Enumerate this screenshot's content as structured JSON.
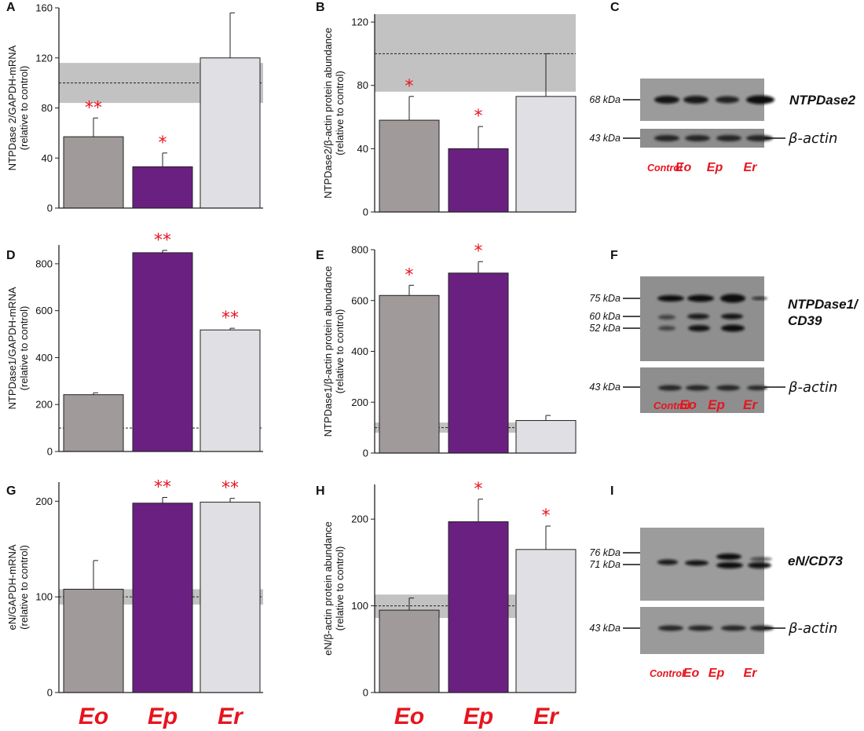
{
  "colors": {
    "Eo": "#a09a9a",
    "Ep": "#6a2080",
    "Er": "#e0e0e4",
    "star": "#e8141e",
    "band": "#c2c2c2"
  },
  "category_labels": [
    "Eo",
    "Ep",
    "Er"
  ],
  "chart_data": [
    {
      "panel": "A",
      "type": "bar",
      "ylabel": "NTPDase 2/GAPDH-mRNA\n(relative to control)",
      "categories": [
        "Eo",
        "Ep",
        "Er"
      ],
      "values": [
        57,
        33,
        120
      ],
      "errors": [
        15,
        11,
        36
      ],
      "significance": [
        "**",
        "*",
        ""
      ],
      "ylim": [
        0,
        160
      ],
      "yticks": [
        0,
        40,
        80,
        120,
        160
      ],
      "control": {
        "mean": 100,
        "band": [
          84,
          116
        ]
      }
    },
    {
      "panel": "B",
      "type": "bar",
      "ylabel": "NTPDase2/β-actin protein abundance\n(relative to control)",
      "categories": [
        "Eo",
        "Ep",
        "Er"
      ],
      "values": [
        58,
        40,
        73
      ],
      "errors": [
        15,
        14,
        27
      ],
      "significance": [
        "*",
        "*",
        ""
      ],
      "ylim": [
        0,
        125
      ],
      "yticks": [
        0,
        40,
        80,
        120
      ],
      "control": {
        "mean": 100,
        "band": [
          76,
          125
        ]
      }
    },
    {
      "panel": "D",
      "type": "bar",
      "ylabel": "NTPDase1/GAPDH-mRNA\n(relative to control)",
      "categories": [
        "Eo",
        "Ep",
        "Er"
      ],
      "values": [
        242,
        847,
        518
      ],
      "errors": [
        8,
        10,
        7
      ],
      "significance": [
        "",
        "**",
        "**"
      ],
      "ylim": [
        0,
        880
      ],
      "yticks": [
        0,
        200,
        400,
        600,
        800
      ],
      "control": {
        "mean": 100,
        "band": [
          99,
          101
        ]
      }
    },
    {
      "panel": "E",
      "type": "bar",
      "ylabel": "NTPDase1/β-actin protein abundance\n(relative to control)",
      "categories": [
        "Eo",
        "Ep",
        "Er"
      ],
      "values": [
        620,
        708,
        128
      ],
      "errors": [
        40,
        45,
        20
      ],
      "significance": [
        "*",
        "*",
        ""
      ],
      "ylim": [
        0,
        800
      ],
      "yticks": [
        0,
        200,
        400,
        600,
        800
      ],
      "control": {
        "mean": 100,
        "band": [
          80,
          120
        ]
      }
    },
    {
      "panel": "G",
      "type": "bar",
      "ylabel": "eN/GAPDH-mRNA\n(relative to control)",
      "categories": [
        "Eo",
        "Ep",
        "Er"
      ],
      "values": [
        108,
        198,
        199
      ],
      "errors": [
        30,
        6,
        4
      ],
      "significance": [
        "",
        "**",
        "**"
      ],
      "ylim": [
        0,
        220
      ],
      "yticks": [
        0,
        100,
        200
      ],
      "control": {
        "mean": 100,
        "band": [
          92,
          108
        ]
      }
    },
    {
      "panel": "H",
      "type": "bar",
      "ylabel": "eN/β-actin protein abundance\n(relative to control)",
      "categories": [
        "Eo",
        "Ep",
        "Er"
      ],
      "values": [
        95,
        197,
        165
      ],
      "errors": [
        14,
        26,
        27
      ],
      "significance": [
        "",
        "*",
        "*"
      ],
      "ylim": [
        0,
        240
      ],
      "yticks": [
        0,
        100,
        200
      ],
      "control": {
        "mean": 100,
        "band": [
          86,
          113
        ]
      }
    }
  ],
  "blots": [
    {
      "panel": "C",
      "target": "NTPDase2",
      "target_lines": [
        "NTPDase2"
      ],
      "loading": "β-actin",
      "target_markers": [
        "68 kDa"
      ],
      "loading_marker": "43 kDa",
      "lanes": [
        "Control",
        "Eo",
        "Ep",
        "Er"
      ]
    },
    {
      "panel": "F",
      "target": "NTPDase1/CD39",
      "target_lines": [
        "NTPDase1/",
        "CD39"
      ],
      "loading": "β-actin",
      "target_markers": [
        "75 kDa",
        "60 kDa",
        "52 kDa"
      ],
      "loading_marker": "43 kDa",
      "lanes": [
        "Control",
        "Eo",
        "Ep",
        "Er"
      ]
    },
    {
      "panel": "I",
      "target": "eN/CD73",
      "target_lines": [
        "eN/CD73"
      ],
      "loading": "β-actin",
      "target_markers": [
        "76 kDa",
        "71 kDa"
      ],
      "loading_marker": "43 kDa",
      "lanes": [
        "Control",
        "Eo",
        "Ep",
        "Er"
      ]
    }
  ]
}
